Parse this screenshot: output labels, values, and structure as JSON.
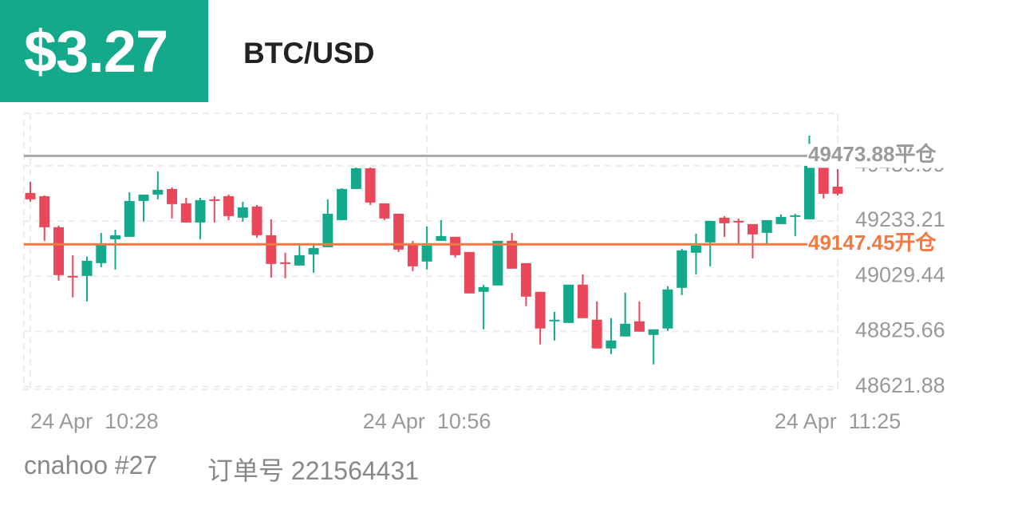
{
  "header": {
    "pnl": "$3.27",
    "symbol": "BTC/USD"
  },
  "chart_data": {
    "type": "candlestick",
    "categories": [
      "24 Apr  10:28",
      null,
      null,
      null,
      null,
      null,
      null,
      null,
      null,
      null,
      null,
      null,
      null,
      null,
      null,
      null,
      null,
      null,
      null,
      null,
      null,
      null,
      null,
      null,
      null,
      null,
      null,
      null,
      "24 Apr  10:56",
      null,
      null,
      null,
      null,
      null,
      null,
      null,
      null,
      null,
      null,
      null,
      null,
      null,
      null,
      null,
      null,
      null,
      null,
      null,
      null,
      null,
      null,
      null,
      null,
      null,
      null,
      null,
      null,
      "24 Apr  11:25"
    ],
    "open": [
      49336.8,
      49325.0,
      49210.3,
      49030.7,
      49030.7,
      49077.8,
      49166.1,
      49174.9,
      49307.4,
      49330.9,
      49351.5,
      49298.5,
      49227.9,
      49313.3,
      49325.0,
      49245.6,
      49286.8,
      49180.8,
      49080.8,
      49069.0,
      49110.2,
      49136.7,
      49236.7,
      49351.5,
      49428.0,
      49298.5,
      49260.3,
      49145.5,
      49083.7,
      49160.2,
      49174.9,
      49119.0,
      48971.9,
      48995.4,
      49160.2,
      49077.8,
      48971.9,
      48863.0,
      48857.1,
      48998.4,
      48868.9,
      48762.9,
      48807.1,
      48863.0,
      48812.9,
      48836.5,
      48986.6,
      49116.1,
      49154.3,
      49245.6,
      49233.8,
      49222.0,
      49189.6,
      49222.0,
      49248.5,
      49239.7,
      49431.0,
      49360.3
    ],
    "high": [
      49378.0,
      49328.0,
      49216.1,
      49107.2,
      49101.4,
      49189.6,
      49201.4,
      49339.7,
      49330.9,
      49416.3,
      49357.4,
      49319.1,
      49319.1,
      49325.0,
      49330.9,
      49304.4,
      49292.7,
      49239.7,
      49116.1,
      49142.6,
      49151.4,
      49313.3,
      49354.5,
      49431.0,
      49431.0,
      49298.5,
      49260.3,
      49160.2,
      49213.2,
      49236.7,
      49174.9,
      49119.0,
      48998.4,
      49160.2,
      49189.6,
      49077.8,
      48971.9,
      48898.3,
      48998.4,
      49036.6,
      48936.6,
      48874.7,
      48968.9,
      48936.6,
      48833.5,
      48992.5,
      49130.8,
      49186.7,
      49233.8,
      49251.5,
      49242.6,
      49222.0,
      49236.7,
      49257.3,
      49260.3,
      49548.7,
      49431.0,
      49425.1
    ],
    "low": [
      49304.4,
      49160.2,
      49013.1,
      48951.3,
      48936.6,
      49063.1,
      49054.3,
      49174.9,
      49230.9,
      49313.3,
      49242.6,
      49227.9,
      49166.1,
      49227.9,
      49236.7,
      49230.9,
      49172.0,
      49024.8,
      49021.9,
      49069.0,
      49042.5,
      49136.7,
      49236.7,
      49351.5,
      49292.7,
      49236.7,
      49119.0,
      49048.4,
      49054.3,
      49160.2,
      49098.4,
      48966.0,
      48833.5,
      48995.4,
      49057.2,
      48918.9,
      48777.6,
      48792.3,
      48857.1,
      48874.7,
      48762.9,
      48742.3,
      48807.1,
      48824.7,
      48704.1,
      48827.7,
      48960.1,
      49036.6,
      49066.0,
      49174.9,
      49148.4,
      49095.5,
      49148.4,
      49222.0,
      49177.9,
      49239.7,
      49316.2,
      49328.0
    ],
    "close": [
      49313.3,
      49210.3,
      49033.7,
      49024.8,
      49086.6,
      49148.4,
      49180.8,
      49307.4,
      49330.9,
      49348.6,
      49295.6,
      49227.9,
      49310.3,
      49307.4,
      49251.5,
      49283.8,
      49180.8,
      49074.9,
      49074.9,
      49107.2,
      49133.7,
      49260.3,
      49351.5,
      49428.0,
      49301.5,
      49242.6,
      49127.8,
      49066.0,
      49142.6,
      49177.9,
      49107.2,
      48966.0,
      48989.5,
      49160.2,
      49057.2,
      48954.2,
      48836.5,
      48868.9,
      48998.4,
      48874.7,
      48762.9,
      48792.3,
      48854.1,
      48824.7,
      48833.5,
      48980.7,
      49124.9,
      49142.6,
      49233.8,
      49225.0,
      49227.9,
      49183.8,
      49236.7,
      49248.5,
      49254.4,
      49436.9,
      49333.9,
      49333.9
    ],
    "up_color": "#15a98b",
    "down_color": "#e8485a",
    "ylim": [
      48612,
      49631
    ],
    "yticks": [
      48621.88,
      48825.66,
      49029.44,
      49233.21,
      49436.99
    ],
    "grid": true,
    "price_lines": [
      {
        "value": 49473.88,
        "label": "49473.88平仓",
        "color": "#a8a8a8",
        "text_color": "#9a9a9a"
      },
      {
        "value": 49147.45,
        "label": "49147.45开仓",
        "color": "#f37842",
        "text_color": "#f37842"
      }
    ]
  },
  "footer": {
    "account": "cnahoo #27",
    "order": "订单号 221564431"
  }
}
